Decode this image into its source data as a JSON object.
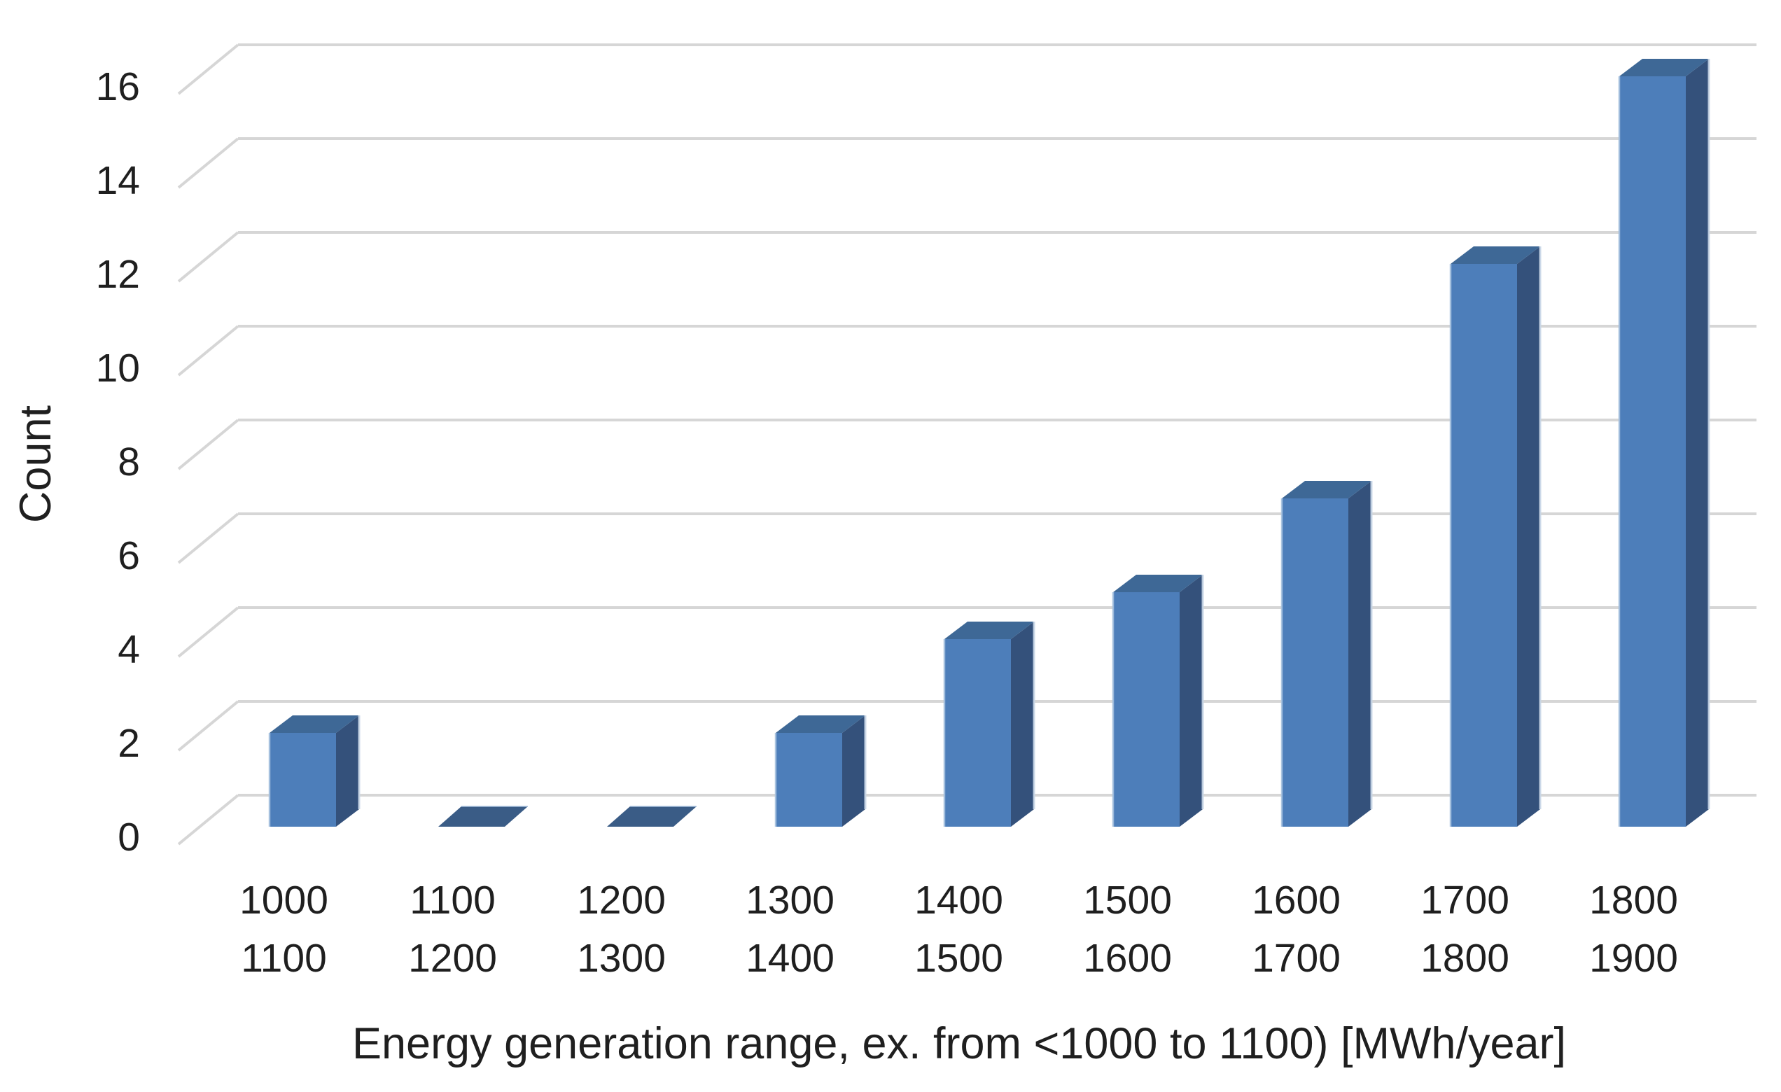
{
  "chart_data": {
    "type": "bar",
    "style": "3d-column",
    "title": "",
    "xlabel": "Energy generation range, ex. from <1000 to 1100) [MWh/year]",
    "ylabel": "Count",
    "categories": [
      {
        "line1": "1000",
        "line2": "1100"
      },
      {
        "line1": "1100",
        "line2": "1200"
      },
      {
        "line1": "1200",
        "line2": "1300"
      },
      {
        "line1": "1300",
        "line2": "1400"
      },
      {
        "line1": "1400",
        "line2": "1500"
      },
      {
        "line1": "1500",
        "line2": "1600"
      },
      {
        "line1": "1600",
        "line2": "1700"
      },
      {
        "line1": "1700",
        "line2": "1800"
      },
      {
        "line1": "1800",
        "line2": "1900"
      }
    ],
    "values": [
      2,
      0,
      0,
      2,
      4,
      5,
      7,
      12,
      16
    ],
    "y_ticks": [
      "0",
      "2",
      "4",
      "6",
      "8",
      "10",
      "12",
      "14",
      "16"
    ],
    "ylim": [
      0,
      16
    ],
    "grid": true,
    "legend": false,
    "colors": {
      "bar_front": "#4D7EBA",
      "bar_side": "#34517B",
      "bar_top": "#3E6896",
      "bar_zero": "#3A5C86",
      "edge_light_left": "#A5C0DE",
      "edge_light_right": "#C7D5E6",
      "gridline": "#D6D6D6",
      "text": "#1f1f1f",
      "background": "#FFFFFF"
    }
  }
}
